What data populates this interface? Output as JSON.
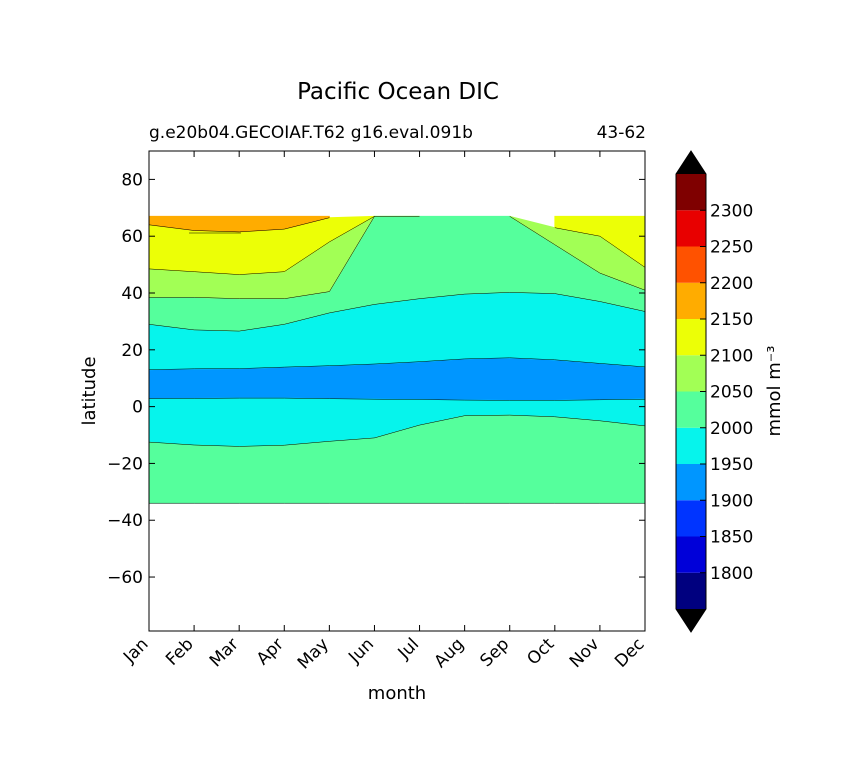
{
  "chart_data": {
    "type": "heatmap",
    "subtype": "filled-contour",
    "title": "Pacific Ocean DIC",
    "subtitle_left": "g.e20b04.GECOIAF.T62 g16.eval.091b",
    "subtitle_right": "43-62",
    "xlabel": "month",
    "ylabel": "latitude",
    "x_ticks": [
      "Jan",
      "Feb",
      "Mar",
      "Apr",
      "May",
      "Jun",
      "Jul",
      "Aug",
      "Sep",
      "Oct",
      "Nov",
      "Dec"
    ],
    "x_range": [
      0,
      11
    ],
    "y_ticks": [
      80,
      60,
      40,
      20,
      0,
      -20,
      -40,
      -60
    ],
    "y_tick_labels": [
      "80",
      "60",
      "40",
      "20",
      "0",
      "−20",
      "−40",
      "−60"
    ],
    "y_range": [
      -79,
      90
    ],
    "data_lat_range": [
      -34,
      67
    ],
    "colorbar": {
      "label": "mmol m⁻³",
      "levels": [
        1750,
        1800,
        1850,
        1900,
        1950,
        2000,
        2050,
        2100,
        2150,
        2200,
        2250,
        2300,
        2350
      ],
      "tick_values": [
        1800,
        1850,
        1900,
        1950,
        2000,
        2050,
        2100,
        2150,
        2200,
        2250,
        2300
      ],
      "tick_labels": [
        "1800",
        "1850",
        "1900",
        "1950",
        "2000",
        "2050",
        "2100",
        "2150",
        "2200",
        "2250",
        "2300"
      ],
      "colors": [
        "#00007f",
        "#0000d9",
        "#0034ff",
        "#0096ff",
        "#06f4ec",
        "#55ff9c",
        "#a2ff55",
        "#ecff06",
        "#ffac00",
        "#ff5200",
        "#e80000",
        "#7f0000"
      ],
      "under_color": "#000000",
      "over_color": "#000000"
    },
    "contour_bands": [
      {
        "name": "band-1900-1950",
        "color": "#0096ff",
        "months": [
          0,
          1,
          2,
          3,
          4,
          5,
          6,
          7,
          8,
          9,
          10,
          11
        ],
        "lower": [
          2.8,
          2.9,
          3.0,
          3.0,
          2.8,
          2.6,
          2.5,
          2.3,
          2.2,
          2.2,
          2.4,
          2.6
        ],
        "upper": [
          13.0,
          13.3,
          13.4,
          13.9,
          14.4,
          15.0,
          15.8,
          16.8,
          17.2,
          16.5,
          15.2,
          14.0
        ]
      },
      {
        "name": "band-1950-2000-north",
        "color": "#06f4ec",
        "months": [
          0,
          1,
          2,
          3,
          4,
          5,
          6,
          7,
          8,
          9,
          10,
          11
        ],
        "lower": [
          13.0,
          13.3,
          13.4,
          13.9,
          14.4,
          15.0,
          15.8,
          16.8,
          17.2,
          16.5,
          15.2,
          14.0
        ],
        "upper": [
          29.0,
          27.0,
          26.6,
          29.0,
          33.0,
          36.0,
          38.0,
          39.6,
          40.2,
          39.8,
          37.0,
          33.5
        ]
      },
      {
        "name": "band-1950-2000-south",
        "color": "#06f4ec",
        "months": [
          0,
          1,
          2,
          3,
          4,
          5,
          6,
          7,
          8,
          9,
          10,
          11
        ],
        "lower": [
          -12.5,
          -13.5,
          -14.0,
          -13.6,
          -12.2,
          -11.0,
          -6.5,
          -3.2,
          -3.0,
          -3.6,
          -5.0,
          -6.8
        ],
        "upper": [
          2.8,
          2.9,
          3.0,
          3.0,
          2.8,
          2.6,
          2.5,
          2.3,
          2.2,
          2.2,
          2.4,
          2.6
        ]
      },
      {
        "name": "band-2000-2050-north",
        "color": "#55ff9c",
        "months": [
          0,
          1,
          2,
          3,
          4,
          5,
          6,
          7,
          8,
          9,
          10,
          11
        ],
        "lower": [
          29.0,
          27.0,
          26.6,
          29.0,
          33.0,
          36.0,
          38.0,
          39.6,
          40.2,
          39.8,
          37.0,
          33.5
        ],
        "upper": [
          38.5,
          38.5,
          38.0,
          38.0,
          40.5,
          67.0,
          67.0,
          67.0,
          67.0,
          57.0,
          47.0,
          41.0
        ]
      },
      {
        "name": "band-2000-2050-south",
        "color": "#55ff9c",
        "months": [
          0,
          1,
          2,
          3,
          4,
          5,
          6,
          7,
          8,
          9,
          10,
          11
        ],
        "lower": [
          -34.0,
          -34.0,
          -34.0,
          -34.0,
          -34.0,
          -34.0,
          -34.0,
          -34.0,
          -34.0,
          -34.0,
          -34.0,
          -34.0
        ],
        "upper": [
          -12.5,
          -13.5,
          -14.0,
          -13.6,
          -12.2,
          -11.0,
          -6.5,
          -3.2,
          -3.0,
          -3.6,
          -5.0,
          -6.8
        ]
      },
      {
        "name": "band-2050-2100-west",
        "color": "#a2ff55",
        "months": [
          0,
          1,
          2,
          3,
          4,
          5,
          6
        ],
        "lower": [
          38.5,
          38.5,
          38.0,
          38.0,
          40.5,
          67.0,
          67.0
        ],
        "upper": [
          48.5,
          47.5,
          46.5,
          47.5,
          58.0,
          67.0,
          67.0
        ]
      },
      {
        "name": "band-2050-2100-east",
        "color": "#a2ff55",
        "months": [
          8,
          9,
          10,
          11
        ],
        "lower": [
          67.0,
          57.0,
          47.0,
          41.0
        ],
        "upper": [
          67.0,
          63.0,
          60.0,
          49.0
        ]
      },
      {
        "name": "band-2100-2150-west",
        "color": "#ecff06",
        "months": [
          0,
          1,
          2,
          3,
          4,
          5
        ],
        "lower": [
          48.5,
          47.5,
          46.5,
          47.5,
          58.0,
          67.0
        ],
        "upper": [
          64.0,
          62.0,
          61.5,
          62.5,
          66.5,
          67.0
        ]
      },
      {
        "name": "band-2100-2150-east",
        "color": "#ecff06",
        "months": [
          9,
          10,
          11
        ],
        "lower": [
          63.0,
          60.0,
          49.0
        ],
        "upper": [
          67.0,
          67.0,
          67.0
        ]
      },
      {
        "name": "band-2150-2200-west",
        "color": "#ffac00",
        "months": [
          0,
          1,
          2,
          3,
          4
        ],
        "lower": [
          64.0,
          62.0,
          61.5,
          62.5,
          66.5
        ],
        "upper": [
          67.0,
          67.0,
          67.0,
          67.0,
          67.0
        ]
      }
    ]
  }
}
